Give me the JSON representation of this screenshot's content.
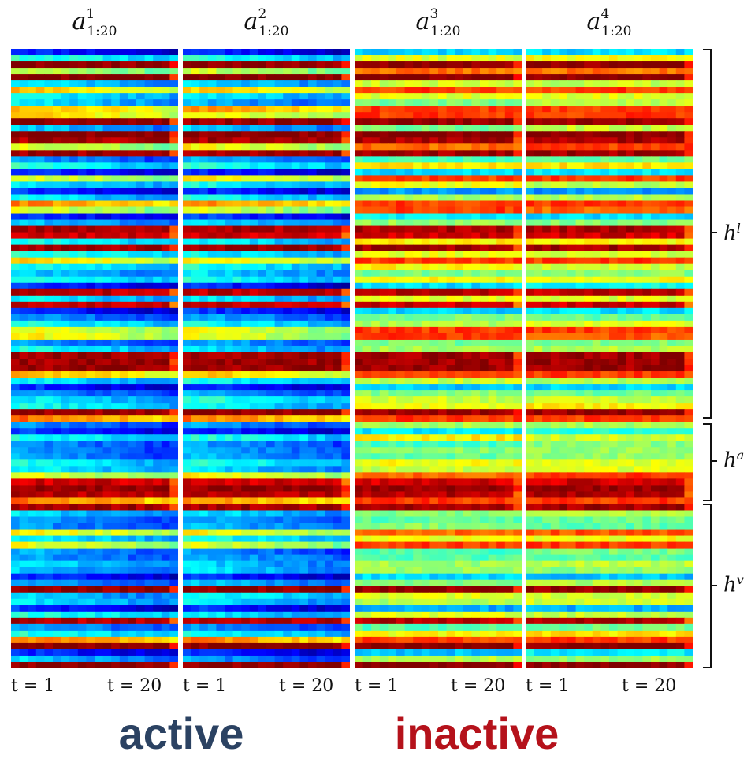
{
  "chart_data": {
    "type": "heatmap",
    "panels": [
      {
        "base": "a",
        "superscript": "1",
        "subscript": "1:20",
        "group": "active",
        "seed": 11
      },
      {
        "base": "a",
        "superscript": "2",
        "subscript": "1:20",
        "group": "active",
        "seed": 23
      },
      {
        "base": "a",
        "superscript": "3",
        "subscript": "1:20",
        "group": "inactive",
        "seed": 37
      },
      {
        "base": "a",
        "superscript": "4",
        "subscript": "1:20",
        "group": "inactive",
        "seed": 41
      }
    ],
    "x_ticks": {
      "start": "t = 1",
      "end": "t = 20"
    },
    "time_steps": 20,
    "colormap": "jet",
    "row_groups": [
      {
        "base": "h",
        "superscript": "l",
        "rows": 58
      },
      {
        "base": "h",
        "superscript": "a",
        "rows": 13
      },
      {
        "base": "h",
        "superscript": "v",
        "rows": 27
      }
    ],
    "group_labels": [
      {
        "text": "active",
        "color": "#2b4262"
      },
      {
        "text": "inactive",
        "color": "#b5121b"
      }
    ]
  }
}
